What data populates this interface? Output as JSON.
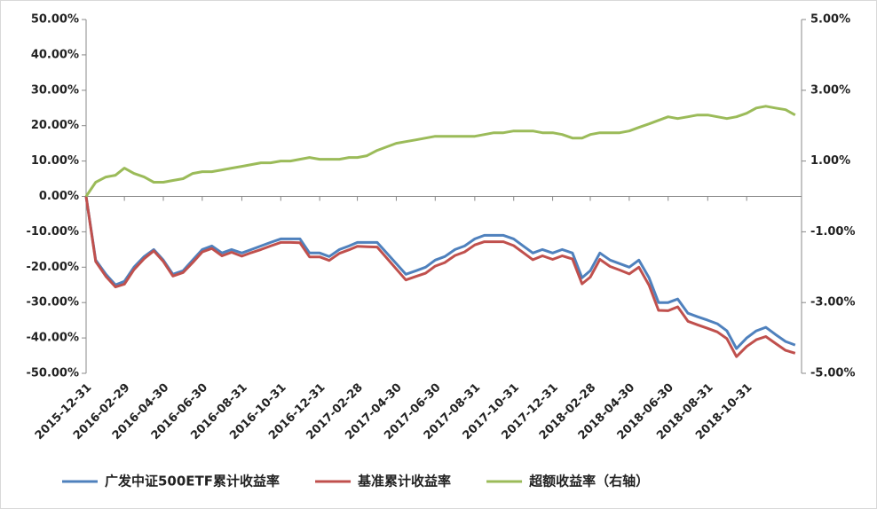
{
  "chart_data": {
    "type": "line",
    "x": [
      "2015-12-31",
      "2016-01-15",
      "2016-01-31",
      "2016-02-15",
      "2016-02-29",
      "2016-03-15",
      "2016-03-31",
      "2016-04-15",
      "2016-04-30",
      "2016-05-15",
      "2016-05-31",
      "2016-06-15",
      "2016-06-30",
      "2016-07-15",
      "2016-07-31",
      "2016-08-15",
      "2016-08-31",
      "2016-09-15",
      "2016-09-30",
      "2016-10-15",
      "2016-10-31",
      "2016-11-15",
      "2016-11-30",
      "2016-12-15",
      "2016-12-31",
      "2017-01-15",
      "2017-01-31",
      "2017-02-15",
      "2017-02-28",
      "2017-03-15",
      "2017-03-31",
      "2017-04-15",
      "2017-04-30",
      "2017-05-15",
      "2017-05-31",
      "2017-06-15",
      "2017-06-30",
      "2017-07-15",
      "2017-07-31",
      "2017-08-15",
      "2017-08-31",
      "2017-09-15",
      "2017-09-30",
      "2017-10-15",
      "2017-10-31",
      "2017-11-15",
      "2017-11-30",
      "2017-12-15",
      "2017-12-31",
      "2018-01-15",
      "2018-01-31",
      "2018-02-15",
      "2018-02-28",
      "2018-03-15",
      "2018-03-31",
      "2018-04-15",
      "2018-04-30",
      "2018-05-15",
      "2018-05-31",
      "2018-06-15",
      "2018-06-30",
      "2018-07-15",
      "2018-07-31",
      "2018-08-15",
      "2018-08-31",
      "2018-09-15",
      "2018-09-30",
      "2018-10-15",
      "2018-10-31",
      "2018-11-15",
      "2018-11-30",
      "2018-12-15",
      "2018-12-31",
      "2019-01-15"
    ],
    "xlim": [
      "2015-12-31",
      "2019-01-25"
    ],
    "xticks": [
      "2015-12-31",
      "2016-02-29",
      "2016-04-30",
      "2016-06-30",
      "2016-08-31",
      "2016-10-31",
      "2016-12-31",
      "2017-02-28",
      "2017-04-30",
      "2017-06-30",
      "2017-08-31",
      "2017-10-31",
      "2017-12-31",
      "2018-02-28",
      "2018-04-30",
      "2018-06-30",
      "2018-08-31",
      "2018-10-31"
    ],
    "ylim": [
      -50,
      50
    ],
    "yticks": [
      {
        "value": -50,
        "label": "-50.00%"
      },
      {
        "value": -40,
        "label": "-40.00%"
      },
      {
        "value": -30,
        "label": "-30.00%"
      },
      {
        "value": -20,
        "label": "-20.00%"
      },
      {
        "value": -10,
        "label": "-10.00%"
      },
      {
        "value": 0,
        "label": "0.00%"
      },
      {
        "value": 10,
        "label": "10.00%"
      },
      {
        "value": 20,
        "label": "20.00%"
      },
      {
        "value": 30,
        "label": "30.00%"
      },
      {
        "value": 40,
        "label": "40.00%"
      },
      {
        "value": 50,
        "label": "50.00%"
      }
    ],
    "y2lim": [
      -5,
      5
    ],
    "y2ticks": [
      {
        "value": -5,
        "label": "-5.00%"
      },
      {
        "value": -3,
        "label": "-3.00%"
      },
      {
        "value": -1,
        "label": "-1.00%"
      },
      {
        "value": 1,
        "label": "1.00%"
      },
      {
        "value": 3,
        "label": "3.00%"
      },
      {
        "value": 5,
        "label": "5.00%"
      }
    ],
    "legend": "bottom",
    "series": [
      {
        "name": "广发中证500ETF累计收益率",
        "color": "#4f81bd",
        "values": [
          0,
          -18,
          -22,
          -25,
          -24,
          -20,
          -17,
          -15,
          -18,
          -22,
          -21,
          -18,
          -15,
          -14,
          -16,
          -15,
          -16,
          -15,
          -14,
          -13,
          -12,
          -12,
          -12,
          -16,
          -16,
          -17,
          -15,
          -14,
          -13,
          -13,
          -13,
          -16,
          -19,
          -22,
          -21,
          -20,
          -18,
          -17,
          -15,
          -14,
          -12,
          -11,
          -11,
          -11,
          -12,
          -14,
          -16,
          -15,
          -16,
          -15,
          -16,
          -23,
          -21,
          -16,
          -18,
          -19,
          -20,
          -18,
          -23,
          -30,
          -30,
          -29,
          -33,
          -34,
          -35,
          -36,
          -38,
          -43,
          -40,
          -38,
          -37,
          -39,
          -41,
          -42
        ]
      },
      {
        "name": "基准累计收益率",
        "color": "#c0504d",
        "values": [
          0,
          -18.4,
          -22.6,
          -25.6,
          -24.8,
          -20.7,
          -17.6,
          -15.4,
          -18.4,
          -22.5,
          -21.5,
          -18.7,
          -15.7,
          -14.7,
          -16.8,
          -15.8,
          -16.9,
          -15.9,
          -15.0,
          -14.0,
          -13.0,
          -13.0,
          -13.1,
          -17.1,
          -17.1,
          -18.1,
          -16.1,
          -15.1,
          -14.1,
          -14.2,
          -14.3,
          -17.4,
          -20.5,
          -23.6,
          -22.6,
          -21.7,
          -19.7,
          -18.7,
          -16.7,
          -15.7,
          -13.7,
          -12.8,
          -12.8,
          -12.8,
          -13.9,
          -15.9,
          -17.9,
          -16.8,
          -17.8,
          -16.8,
          -17.7,
          -24.7,
          -22.8,
          -17.8,
          -19.8,
          -20.8,
          -21.9,
          -20.0,
          -25.1,
          -32.2,
          -32.3,
          -31.2,
          -35.3,
          -36.3,
          -37.3,
          -38.3,
          -40.2,
          -45.3,
          -42.4,
          -40.5,
          -39.6,
          -41.5,
          -43.5,
          -44.3
        ]
      },
      {
        "name": "超额收益率（右轴）",
        "color": "#9bbb59",
        "axis": "y2",
        "values": [
          0,
          0.4,
          0.55,
          0.6,
          0.8,
          0.65,
          0.55,
          0.4,
          0.4,
          0.45,
          0.5,
          0.65,
          0.7,
          0.7,
          0.75,
          0.8,
          0.85,
          0.9,
          0.95,
          0.95,
          1.0,
          1.0,
          1.05,
          1.1,
          1.05,
          1.05,
          1.05,
          1.1,
          1.1,
          1.15,
          1.3,
          1.4,
          1.5,
          1.55,
          1.6,
          1.65,
          1.7,
          1.7,
          1.7,
          1.7,
          1.7,
          1.75,
          1.8,
          1.8,
          1.85,
          1.85,
          1.85,
          1.8,
          1.8,
          1.75,
          1.65,
          1.65,
          1.75,
          1.8,
          1.8,
          1.8,
          1.85,
          1.95,
          2.05,
          2.15,
          2.25,
          2.2,
          2.25,
          2.3,
          2.3,
          2.25,
          2.2,
          2.25,
          2.35,
          2.5,
          2.55,
          2.5,
          2.45,
          2.3
        ]
      }
    ]
  }
}
